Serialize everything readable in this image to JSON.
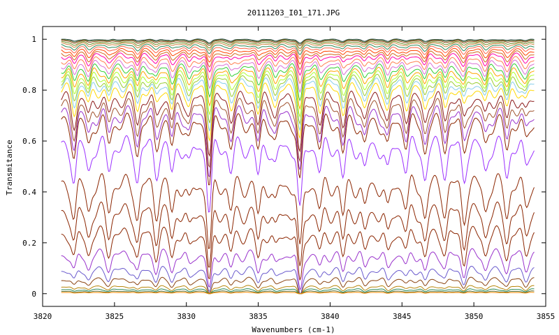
{
  "chart_data": {
    "type": "line",
    "title": "20111203_I01_171.JPG",
    "xlabel": "Wavenumbers (cm-1)",
    "ylabel": "Transmitance",
    "xlim": [
      3820,
      3855
    ],
    "ylim": [
      -0.05,
      1.05
    ],
    "x_data_range": [
      3821.3,
      3854.2
    ],
    "xticks": [
      3820,
      3825,
      3830,
      3835,
      3840,
      3845,
      3850,
      3855
    ],
    "yticks": [
      0,
      0.2,
      0.4,
      0.6,
      0.8,
      1
    ],
    "grid": false,
    "legend": "none",
    "absorption_lines": [
      {
        "x": 3822.2,
        "depth": 0.45
      },
      {
        "x": 3823.2,
        "depth": 0.35
      },
      {
        "x": 3824.6,
        "depth": 0.3
      },
      {
        "x": 3826.6,
        "depth": 0.45
      },
      {
        "x": 3827.9,
        "depth": 0.35
      },
      {
        "x": 3829.0,
        "depth": 0.4
      },
      {
        "x": 3830.2,
        "depth": 0.3
      },
      {
        "x": 3831.6,
        "depth": 0.95
      },
      {
        "x": 3833.1,
        "depth": 0.35
      },
      {
        "x": 3835.0,
        "depth": 0.45
      },
      {
        "x": 3836.2,
        "depth": 0.3
      },
      {
        "x": 3837.9,
        "depth": 1.0
      },
      {
        "x": 3839.3,
        "depth": 0.35
      },
      {
        "x": 3840.9,
        "depth": 0.45
      },
      {
        "x": 3842.4,
        "depth": 0.35
      },
      {
        "x": 3844.0,
        "depth": 0.4
      },
      {
        "x": 3845.3,
        "depth": 0.3
      },
      {
        "x": 3846.6,
        "depth": 0.45
      },
      {
        "x": 3848.0,
        "depth": 0.35
      },
      {
        "x": 3849.3,
        "depth": 0.45
      },
      {
        "x": 3850.8,
        "depth": 0.35
      },
      {
        "x": 3852.3,
        "depth": 0.4
      },
      {
        "x": 3853.6,
        "depth": 0.3
      }
    ],
    "series_baselines": [
      1.0,
      0.998,
      0.995,
      0.99,
      0.985,
      0.978,
      0.97,
      0.96,
      0.95,
      0.94,
      0.925,
      0.91,
      0.895,
      0.88,
      0.865,
      0.85,
      0.835,
      0.815,
      0.78,
      0.75,
      0.72,
      0.69,
      0.6,
      0.45,
      0.34,
      0.25,
      0.165,
      0.1,
      0.06,
      0.03,
      0.018,
      0.01,
      0.005
    ],
    "series_colors": [
      "#2f4f4f",
      "#556b2f",
      "#8b4513",
      "#6b8e23",
      "#cd853f",
      "#2e8b57",
      "#ff6347",
      "#ff4500",
      "#d2691e",
      "#ff00aa",
      "#ff7f50",
      "#da70d6",
      "#32cd32",
      "#ffa500",
      "#adff2f",
      "#9acd32",
      "#87ceeb",
      "#ffd700",
      "#8b1a1a",
      "#a0522d",
      "#9932cc",
      "#8b2500",
      "#9b30ff",
      "#8b2500",
      "#8b2500",
      "#8b2500",
      "#9932cc",
      "#6a5acd",
      "#8b4513",
      "#b8860b",
      "#2e8b57",
      "#556b2f",
      "#ff8c00"
    ]
  }
}
